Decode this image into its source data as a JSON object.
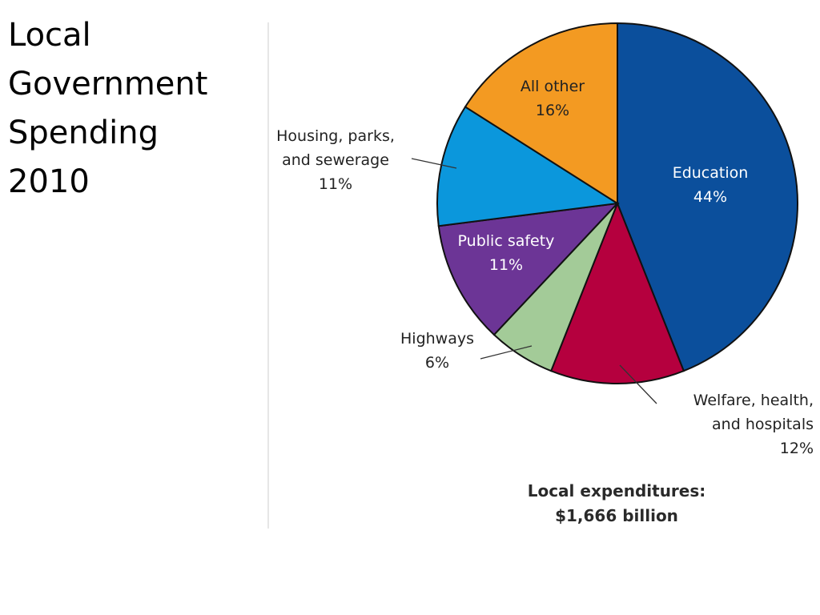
{
  "slide": {
    "title_lines": [
      "Local",
      "Government",
      "Spending",
      "2010"
    ]
  },
  "chart_data": {
    "type": "pie",
    "slices": [
      {
        "label_lines": [
          "Education"
        ],
        "value": 44,
        "value_label": "44%",
        "color": "#0b4f9c"
      },
      {
        "label_lines": [
          "Welfare, health,",
          "and hospitals"
        ],
        "value": 12,
        "value_label": "12%",
        "color": "#b5003e"
      },
      {
        "label_lines": [
          "Highways"
        ],
        "value": 6,
        "value_label": "6%",
        "color": "#a3cb98"
      },
      {
        "label_lines": [
          "Public safety"
        ],
        "value": 11,
        "value_label": "11%",
        "color": "#6c3596"
      },
      {
        "label_lines": [
          "Housing, parks,",
          "and sewerage"
        ],
        "value": 11,
        "value_label": "11%",
        "color": "#0b97dc"
      },
      {
        "label_lines": [
          "All other"
        ],
        "value": 16,
        "value_label": "16%",
        "color": "#f39a22"
      }
    ],
    "total_lines": [
      "Local expenditures:",
      "$1,666 billion"
    ]
  }
}
